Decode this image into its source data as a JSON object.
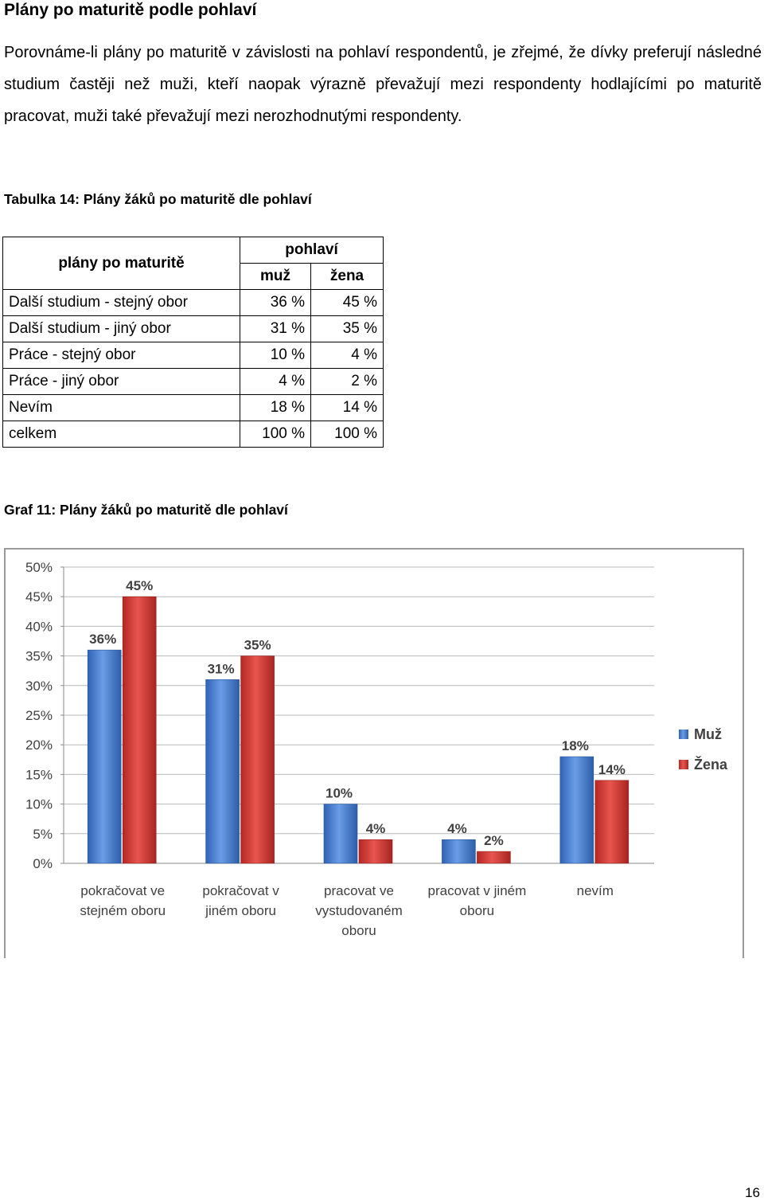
{
  "heading": "Plány po maturitě podle pohlaví",
  "paragraph": "Porovnáme-li plány po maturitě v závislosti na pohlaví respondentů, je zřejmé, že dívky preferují následné studium častěji než muži, kteří naopak výrazně převažují mezi respondenty hodlajícími po maturitě pracovat, muži také převažují mezi nerozhodnutými respondenty.",
  "table_caption": "Tabulka 14: Plány žáků po maturitě dle pohlaví",
  "table": {
    "header_label": "plány po maturitě",
    "header_group": "pohlaví",
    "col_male": "muž",
    "col_female": "žena",
    "rows": [
      {
        "label": "Další studium - stejný obor",
        "male": "36 %",
        "female": "45 %"
      },
      {
        "label": "Další studium - jiný obor",
        "male": "31 %",
        "female": "35 %"
      },
      {
        "label": "Práce - stejný obor",
        "male": "10 %",
        "female": "4 %"
      },
      {
        "label": "Práce - jiný obor",
        "male": "4 %",
        "female": "2 %"
      },
      {
        "label": "Nevím",
        "male": "18 %",
        "female": "14 %"
      },
      {
        "label": "celkem",
        "male": "100 %",
        "female": "100 %"
      }
    ]
  },
  "graph_caption": "Graf  11: Plány žáků po maturitě dle pohlaví",
  "page_number": "16",
  "chart_data": {
    "type": "bar",
    "categories": [
      [
        "pokračovat ve",
        "stejném oboru"
      ],
      [
        "pokračovat  v",
        "jiném oboru"
      ],
      [
        "pracovat ve",
        "vystudovaném",
        "oboru"
      ],
      [
        "pracovat v jiném",
        "oboru"
      ],
      [
        "nevím"
      ]
    ],
    "series": [
      {
        "name": "Muž",
        "values": [
          36,
          31,
          10,
          4,
          18
        ],
        "labels": [
          "36%",
          "31%",
          "10%",
          "4%",
          "18%"
        ],
        "color": "#4a7ed0"
      },
      {
        "name": "Žena",
        "values": [
          45,
          35,
          4,
          2,
          14
        ],
        "labels": [
          "45%",
          "35%",
          "4%",
          "2%",
          "14%"
        ],
        "color": "#d13b35"
      }
    ],
    "ylim": [
      0,
      50
    ],
    "yticks": [
      "0%",
      "5%",
      "10%",
      "15%",
      "20%",
      "25%",
      "30%",
      "35%",
      "40%",
      "45%",
      "50%"
    ],
    "grid": true,
    "legend": "right"
  }
}
